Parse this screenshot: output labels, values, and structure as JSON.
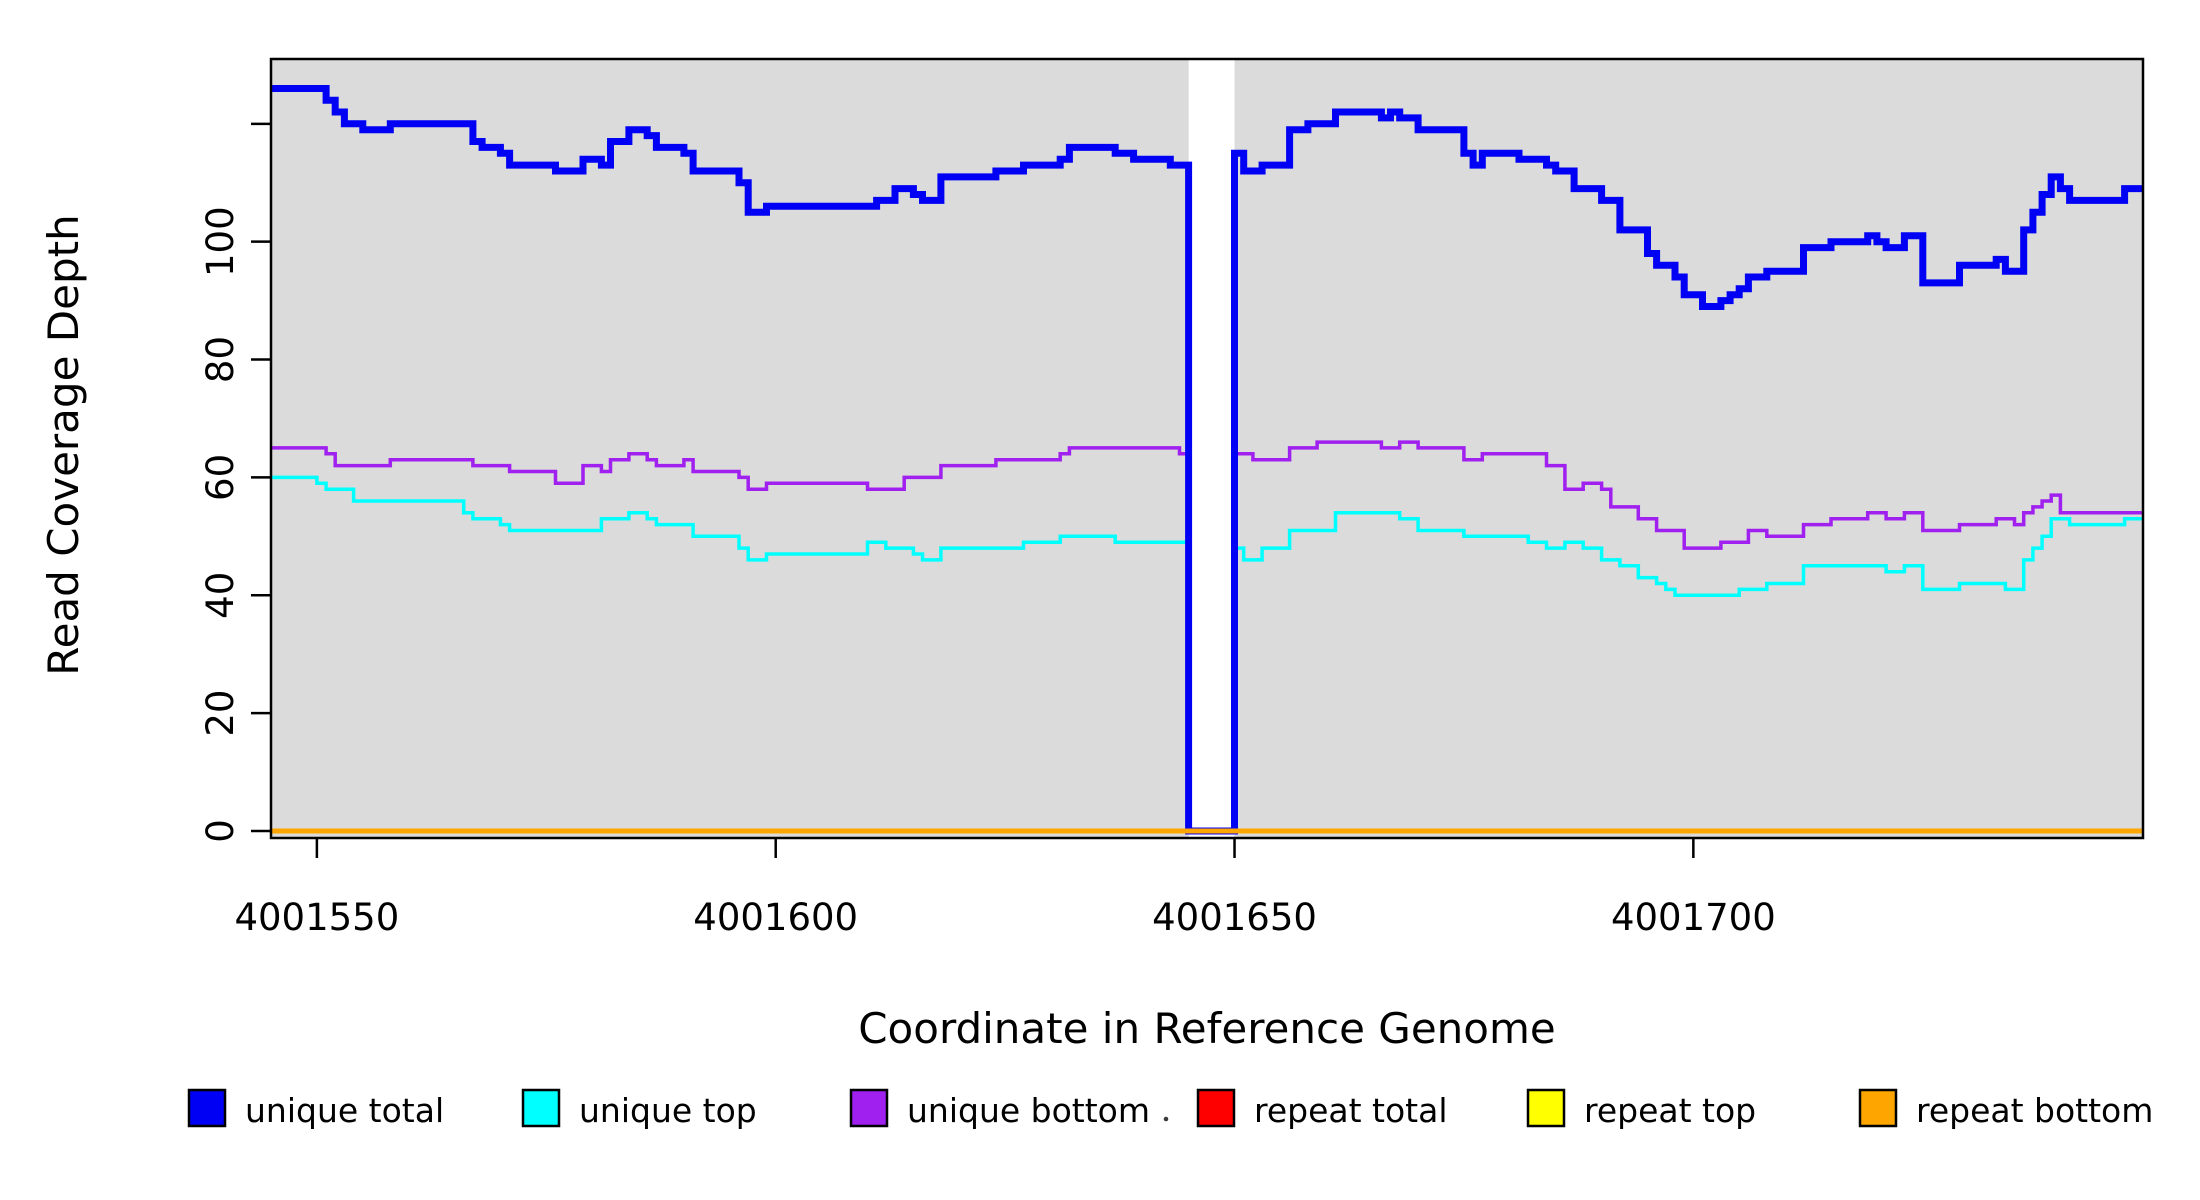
{
  "chart_data": {
    "type": "line",
    "step": true,
    "title": "",
    "xlabel": "Coordinate in Reference Genome",
    "ylabel": "Read Coverage Depth",
    "x_domain": [
      4001545,
      4001749
    ],
    "y_domain": [
      0,
      131
    ],
    "x_ticks": [
      4001550,
      4001600,
      4001650,
      4001700
    ],
    "y_ticks": [
      0,
      20,
      40,
      60,
      80,
      100,
      120
    ],
    "y_tick_labels": [
      "0",
      "20",
      "40",
      "60",
      "80",
      "100",
      ""
    ],
    "grid": false,
    "panel_color": "#dbdbdb",
    "gap_region": {
      "from": 4001645,
      "to": 4001650,
      "color": "#ffffff"
    },
    "series": [
      {
        "name": "repeat total",
        "color": "#ff0000",
        "width": 4,
        "breakpoints": [
          [
            4001545,
            0
          ]
        ]
      },
      {
        "name": "repeat top",
        "color": "#ffff00",
        "width": 4,
        "breakpoints": [
          [
            4001545,
            0
          ]
        ]
      },
      {
        "name": "unique top",
        "color": "#00ffff",
        "width": 3.5,
        "breakpoints": [
          [
            4001545,
            60
          ],
          [
            4001550,
            59
          ],
          [
            4001551,
            58
          ],
          [
            4001554,
            56
          ],
          [
            4001566,
            54
          ],
          [
            4001567,
            53
          ],
          [
            4001570,
            52
          ],
          [
            4001571,
            51
          ],
          [
            4001581,
            53
          ],
          [
            4001584,
            54
          ],
          [
            4001586,
            53
          ],
          [
            4001587,
            52
          ],
          [
            4001591,
            50
          ],
          [
            4001596,
            48
          ],
          [
            4001597,
            46
          ],
          [
            4001599,
            47
          ],
          [
            4001610,
            49
          ],
          [
            4001612,
            48
          ],
          [
            4001615,
            47
          ],
          [
            4001616,
            46
          ],
          [
            4001618,
            48
          ],
          [
            4001627,
            49
          ],
          [
            4001631,
            50
          ],
          [
            4001637,
            49
          ],
          [
            4001645,
            0
          ],
          [
            4001650,
            48
          ],
          [
            4001651,
            46
          ],
          [
            4001653,
            48
          ],
          [
            4001656,
            51
          ],
          [
            4001661,
            54
          ],
          [
            4001668,
            53
          ],
          [
            4001670,
            51
          ],
          [
            4001675,
            50
          ],
          [
            4001682,
            49
          ],
          [
            4001684,
            48
          ],
          [
            4001686,
            49
          ],
          [
            4001688,
            48
          ],
          [
            4001690,
            46
          ],
          [
            4001692,
            45
          ],
          [
            4001694,
            43
          ],
          [
            4001696,
            42
          ],
          [
            4001697,
            41
          ],
          [
            4001698,
            40
          ],
          [
            4001705,
            41
          ],
          [
            4001708,
            42
          ],
          [
            4001712,
            45
          ],
          [
            4001721,
            44
          ],
          [
            4001723,
            45
          ],
          [
            4001725,
            41
          ],
          [
            4001729,
            42
          ],
          [
            4001734,
            41
          ],
          [
            4001736,
            46
          ],
          [
            4001737,
            48
          ],
          [
            4001738,
            50
          ],
          [
            4001739,
            53
          ],
          [
            4001741,
            52
          ],
          [
            4001747,
            53
          ]
        ]
      },
      {
        "name": "unique bottom",
        "color": "#a020f0",
        "width": 3.5,
        "breakpoints": [
          [
            4001545,
            65
          ],
          [
            4001551,
            64
          ],
          [
            4001552,
            62
          ],
          [
            4001558,
            63
          ],
          [
            4001567,
            62
          ],
          [
            4001571,
            61
          ],
          [
            4001576,
            59
          ],
          [
            4001579,
            62
          ],
          [
            4001581,
            61
          ],
          [
            4001582,
            63
          ],
          [
            4001584,
            64
          ],
          [
            4001586,
            63
          ],
          [
            4001587,
            62
          ],
          [
            4001590,
            63
          ],
          [
            4001591,
            61
          ],
          [
            4001596,
            60
          ],
          [
            4001597,
            58
          ],
          [
            4001599,
            59
          ],
          [
            4001610,
            58
          ],
          [
            4001614,
            60
          ],
          [
            4001618,
            62
          ],
          [
            4001624,
            63
          ],
          [
            4001631,
            64
          ],
          [
            4001632,
            65
          ],
          [
            4001644,
            64
          ],
          [
            4001645,
            0
          ],
          [
            4001650,
            64
          ],
          [
            4001652,
            63
          ],
          [
            4001656,
            65
          ],
          [
            4001659,
            66
          ],
          [
            4001666,
            65
          ],
          [
            4001668,
            66
          ],
          [
            4001670,
            65
          ],
          [
            4001675,
            63
          ],
          [
            4001677,
            64
          ],
          [
            4001684,
            62
          ],
          [
            4001686,
            58
          ],
          [
            4001688,
            59
          ],
          [
            4001690,
            58
          ],
          [
            4001691,
            55
          ],
          [
            4001694,
            53
          ],
          [
            4001696,
            51
          ],
          [
            4001699,
            48
          ],
          [
            4001703,
            49
          ],
          [
            4001706,
            51
          ],
          [
            4001708,
            50
          ],
          [
            4001712,
            52
          ],
          [
            4001715,
            53
          ],
          [
            4001719,
            54
          ],
          [
            4001721,
            53
          ],
          [
            4001723,
            54
          ],
          [
            4001725,
            51
          ],
          [
            4001729,
            52
          ],
          [
            4001733,
            53
          ],
          [
            4001735,
            52
          ],
          [
            4001736,
            54
          ],
          [
            4001737,
            55
          ],
          [
            4001738,
            56
          ],
          [
            4001739,
            57
          ],
          [
            4001740,
            54
          ]
        ]
      },
      {
        "name": "unique total",
        "color": "#0000f5",
        "width": 7,
        "breakpoints": [
          [
            4001545,
            126
          ],
          [
            4001551,
            124
          ],
          [
            4001552,
            122
          ],
          [
            4001553,
            120
          ],
          [
            4001555,
            119
          ],
          [
            4001558,
            120
          ],
          [
            4001567,
            117
          ],
          [
            4001568,
            116
          ],
          [
            4001570,
            115
          ],
          [
            4001571,
            113
          ],
          [
            4001576,
            112
          ],
          [
            4001579,
            114
          ],
          [
            4001581,
            113
          ],
          [
            4001582,
            117
          ],
          [
            4001584,
            119
          ],
          [
            4001586,
            118
          ],
          [
            4001587,
            116
          ],
          [
            4001590,
            115
          ],
          [
            4001591,
            112
          ],
          [
            4001596,
            110
          ],
          [
            4001597,
            105
          ],
          [
            4001599,
            106
          ],
          [
            4001611,
            107
          ],
          [
            4001613,
            109
          ],
          [
            4001615,
            108
          ],
          [
            4001616,
            107
          ],
          [
            4001618,
            111
          ],
          [
            4001624,
            112
          ],
          [
            4001627,
            113
          ],
          [
            4001631,
            114
          ],
          [
            4001632,
            116
          ],
          [
            4001637,
            115
          ],
          [
            4001639,
            114
          ],
          [
            4001643,
            113
          ],
          [
            4001645,
            0
          ],
          [
            4001650,
            115
          ],
          [
            4001651,
            112
          ],
          [
            4001653,
            113
          ],
          [
            4001656,
            119
          ],
          [
            4001658,
            120
          ],
          [
            4001661,
            122
          ],
          [
            4001666,
            121
          ],
          [
            4001667,
            122
          ],
          [
            4001668,
            121
          ],
          [
            4001670,
            119
          ],
          [
            4001675,
            115
          ],
          [
            4001676,
            113
          ],
          [
            4001677,
            115
          ],
          [
            4001681,
            114
          ],
          [
            4001684,
            113
          ],
          [
            4001685,
            112
          ],
          [
            4001687,
            109
          ],
          [
            4001690,
            107
          ],
          [
            4001692,
            102
          ],
          [
            4001695,
            98
          ],
          [
            4001696,
            96
          ],
          [
            4001698,
            94
          ],
          [
            4001699,
            91
          ],
          [
            4001701,
            89
          ],
          [
            4001703,
            90
          ],
          [
            4001704,
            91
          ],
          [
            4001705,
            92
          ],
          [
            4001706,
            94
          ],
          [
            4001708,
            95
          ],
          [
            4001712,
            99
          ],
          [
            4001715,
            100
          ],
          [
            4001719,
            101
          ],
          [
            4001720,
            100
          ],
          [
            4001721,
            99
          ],
          [
            4001723,
            101
          ],
          [
            4001725,
            93
          ],
          [
            4001729,
            96
          ],
          [
            4001733,
            97
          ],
          [
            4001734,
            95
          ],
          [
            4001736,
            102
          ],
          [
            4001737,
            105
          ],
          [
            4001738,
            108
          ],
          [
            4001739,
            111
          ],
          [
            4001740,
            109
          ],
          [
            4001741,
            107
          ],
          [
            4001747,
            109
          ]
        ]
      },
      {
        "name": "repeat bottom",
        "color": "#ffa500",
        "width": 5,
        "breakpoints": [
          [
            4001545,
            0
          ]
        ]
      }
    ],
    "legend": [
      {
        "label": "unique total",
        "color": "#0000f5"
      },
      {
        "label": "unique top",
        "color": "#00ffff"
      },
      {
        "label": "unique bottom",
        "color": "#a020f0"
      },
      {
        "label": "repeat total",
        "color": "#ff0000"
      },
      {
        "label": "repeat top",
        "color": "#ffff00"
      },
      {
        "label": "repeat bottom",
        "color": "#ffa500"
      }
    ],
    "legend_position": "bottom"
  }
}
